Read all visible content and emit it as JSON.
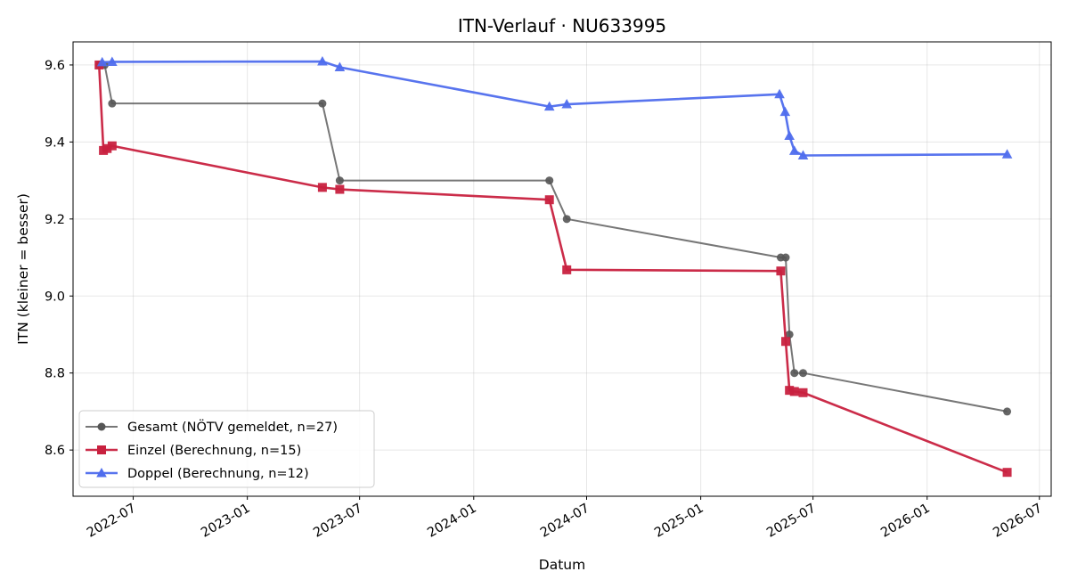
{
  "chart_data": {
    "type": "line",
    "title": "ITN-Verlauf · NU633995",
    "xlabel": "Datum",
    "ylabel": "ITN  (kleiner = besser)",
    "xlim": [
      "2022-03-26",
      "2026-07-20"
    ],
    "ylim": [
      8.48,
      9.66
    ],
    "x_ticks": [
      "2022-07",
      "2023-01",
      "2023-07",
      "2024-01",
      "2024-07",
      "2025-01",
      "2025-07",
      "2026-01",
      "2026-07"
    ],
    "y_ticks": [
      "8.6",
      "8.8",
      "9.0",
      "9.2",
      "9.4",
      "9.6"
    ],
    "grid": true,
    "legend_position": "lower-left",
    "series": [
      {
        "name": "Gesamt (NÖTV gemeldet, n=27)",
        "color": "#555555",
        "marker": "circle",
        "points": [
          {
            "x": "2022-05-07",
            "y": 9.6
          },
          {
            "x": "2022-05-16",
            "y": 9.6
          },
          {
            "x": "2022-05-28",
            "y": 9.5
          },
          {
            "x": "2023-05-02",
            "y": 9.5
          },
          {
            "x": "2023-05-30",
            "y": 9.3
          },
          {
            "x": "2024-05-02",
            "y": 9.3
          },
          {
            "x": "2024-05-30",
            "y": 9.2
          },
          {
            "x": "2025-05-10",
            "y": 9.1
          },
          {
            "x": "2025-05-18",
            "y": 9.1
          },
          {
            "x": "2025-05-24",
            "y": 8.9
          },
          {
            "x": "2025-06-01",
            "y": 8.8
          },
          {
            "x": "2025-06-15",
            "y": 8.8
          },
          {
            "x": "2026-05-10",
            "y": 8.7
          }
        ]
      },
      {
        "name": "Einzel (Berechnung, n=15)",
        "color": "#c8213f",
        "marker": "square",
        "points": [
          {
            "x": "2022-05-07",
            "y": 9.6
          },
          {
            "x": "2022-05-14",
            "y": 9.378
          },
          {
            "x": "2022-05-20",
            "y": 9.383
          },
          {
            "x": "2022-05-28",
            "y": 9.39
          },
          {
            "x": "2023-05-02",
            "y": 9.282
          },
          {
            "x": "2023-05-30",
            "y": 9.277
          },
          {
            "x": "2024-05-02",
            "y": 9.25
          },
          {
            "x": "2024-05-30",
            "y": 9.068
          },
          {
            "x": "2025-05-10",
            "y": 9.065
          },
          {
            "x": "2025-05-18",
            "y": 8.882
          },
          {
            "x": "2025-05-24",
            "y": 8.755
          },
          {
            "x": "2025-06-01",
            "y": 8.752
          },
          {
            "x": "2025-06-15",
            "y": 8.749
          },
          {
            "x": "2026-05-10",
            "y": 8.542
          }
        ]
      },
      {
        "name": "Doppel (Berechnung, n=12)",
        "color": "#4f6ded",
        "marker": "triangle",
        "points": [
          {
            "x": "2022-05-12",
            "y": 9.607
          },
          {
            "x": "2022-05-28",
            "y": 9.608
          },
          {
            "x": "2023-05-02",
            "y": 9.609
          },
          {
            "x": "2023-05-30",
            "y": 9.594
          },
          {
            "x": "2024-05-02",
            "y": 9.492
          },
          {
            "x": "2024-05-30",
            "y": 9.498
          },
          {
            "x": "2025-05-08",
            "y": 9.524
          },
          {
            "x": "2025-05-17",
            "y": 9.478
          },
          {
            "x": "2025-05-24",
            "y": 9.416
          },
          {
            "x": "2025-06-01",
            "y": 9.377
          },
          {
            "x": "2025-06-15",
            "y": 9.365
          },
          {
            "x": "2026-05-10",
            "y": 9.368
          }
        ]
      }
    ]
  }
}
